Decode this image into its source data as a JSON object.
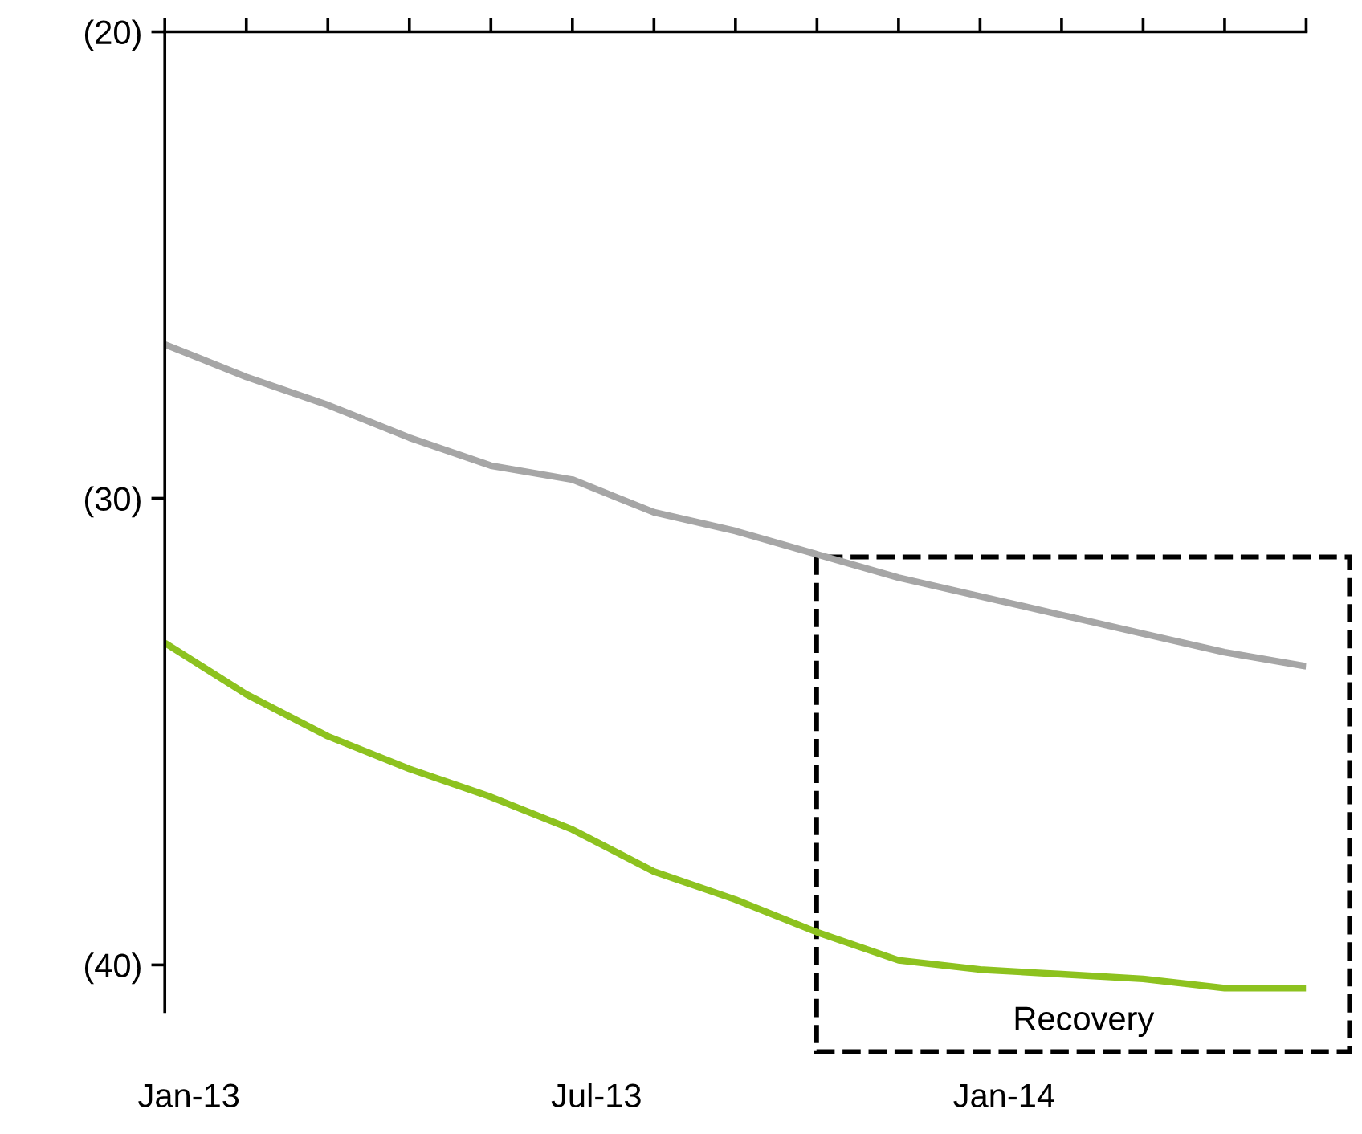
{
  "chart_data": {
    "type": "line",
    "categories": [
      "Jan-13",
      null,
      null,
      null,
      null,
      "Jul-13",
      null,
      null,
      null,
      null,
      "Jan-14",
      null,
      null,
      null,
      null
    ],
    "series": [
      {
        "color": "#a6a6a6",
        "values": [
          -26.7,
          -27.4,
          -28.0,
          -28.7,
          -29.3,
          -29.6,
          -30.3,
          -30.7,
          -31.2,
          -31.7,
          -32.1,
          -32.5,
          -32.9,
          -33.3,
          -33.6
        ]
      },
      {
        "color": "#8dc21f",
        "values": [
          -33.1,
          -34.2,
          -35.1,
          -35.8,
          -36.4,
          -37.1,
          -38.0,
          -38.6,
          -39.3,
          -39.9,
          -40.1,
          -40.2,
          -40.3,
          -40.5,
          -40.5
        ]
      }
    ],
    "ylim": [
      -41,
      -20
    ],
    "yticks": [
      {
        "value": -20,
        "label": "(20)"
      },
      {
        "value": -30,
        "label": "(30)"
      },
      {
        "value": -40,
        "label": "(40)"
      }
    ],
    "annotations": [
      "Recovery"
    ],
    "grid": false,
    "marker": "none",
    "line_style": "solid"
  }
}
